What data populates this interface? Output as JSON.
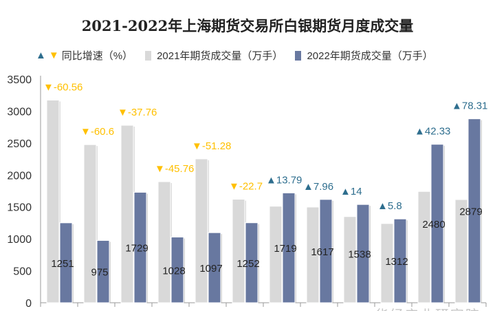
{
  "chart_data": {
    "type": "bar",
    "title": "2021-2022年上海期货交易所白银期货月度成交量",
    "xlabel": "",
    "ylabel": "",
    "ylim": [
      0,
      3500
    ],
    "yticks": [
      0,
      500,
      1000,
      1500,
      2000,
      2500,
      3000,
      3500
    ],
    "grid": false,
    "legend_position": "top",
    "growth_legend": "同比增速（%）",
    "series": [
      {
        "name": "2021年期货成交量（万手）",
        "color": "#D9D9D9",
        "values": [
          3172,
          2475,
          2778,
          1895,
          2252,
          1620,
          1511,
          1498,
          1349,
          1240,
          1742,
          1615
        ]
      },
      {
        "name": "2022年期货成交量（万手）",
        "color": "#6878A0",
        "values": [
          1251,
          975,
          1729,
          1028,
          1097,
          1252,
          1719,
          1617,
          1538,
          1312,
          2480,
          2879
        ]
      }
    ],
    "growth": [
      -60.56,
      -60.6,
      -37.76,
      -45.76,
      -51.28,
      -22.7,
      13.79,
      7.96,
      14,
      5.8,
      42.33,
      78.31
    ],
    "colors": {
      "negative": "#FFC000",
      "positive": "#2E6E8E"
    }
  },
  "watermark": "华经产业研究院"
}
